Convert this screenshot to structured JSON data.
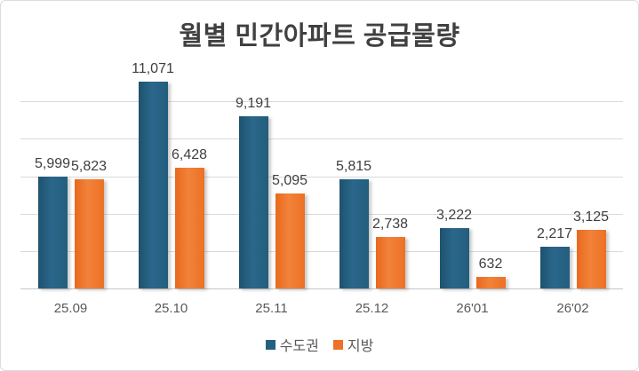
{
  "chart_data": {
    "type": "bar",
    "title": "월별 민간아파트 공급물량",
    "categories": [
      "25.09",
      "25.10",
      "25.11",
      "25.12",
      "26'01",
      "26'02"
    ],
    "series": [
      {
        "name": "수도권",
        "color": "#26607F",
        "values": [
          5999,
          11071,
          9191,
          5815,
          3222,
          2217
        ]
      },
      {
        "name": "지방",
        "color": "#ED7128",
        "values": [
          5823,
          6428,
          5095,
          2738,
          632,
          3125
        ]
      }
    ],
    "data_labels": [
      [
        "5,999",
        "11,071",
        "9,191",
        "5,815",
        "3,222",
        "2,217"
      ],
      [
        "5,823",
        "6,428",
        "5,095",
        "2,738",
        "632",
        "3,125"
      ]
    ],
    "ylim": [
      0,
      12000
    ],
    "gridline_interval": 2000,
    "grid": "horizontal",
    "legend_position": "bottom",
    "colors": {
      "title_text": "#404040",
      "label_text": "#3f3f3f",
      "axis_text": "#595959",
      "gridline": "#d9d9d9",
      "baseline": "#c6c6c6"
    }
  }
}
